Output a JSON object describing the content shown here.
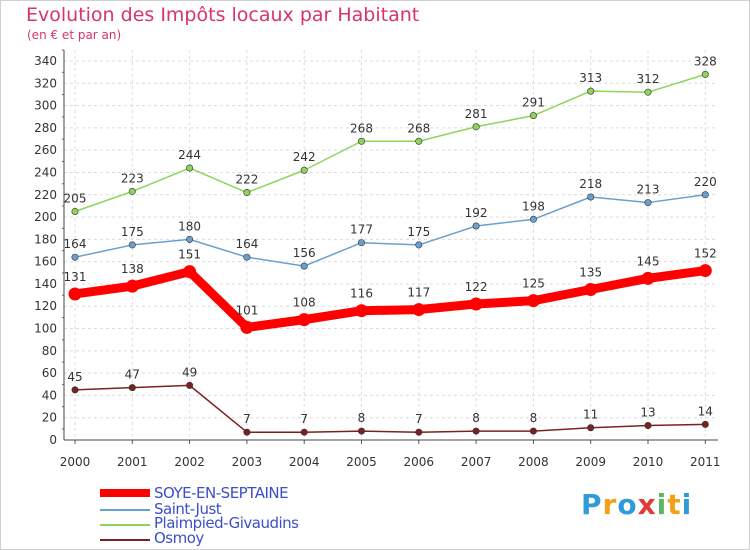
{
  "title": "Evolution des Impôts locaux par Habitant",
  "subtitle": "(en € et par an)",
  "brand": {
    "letters": [
      "P",
      "r",
      "o",
      "x",
      "i",
      "t",
      "i"
    ],
    "colors": [
      "#2f9bd9",
      "#f0a21c",
      "#2f9bd9",
      "#e23a3a",
      "#5cb85c",
      "#f0a21c",
      "#2f9bd9"
    ]
  },
  "chart_data": {
    "type": "line",
    "x": [
      "2000",
      "2001",
      "2002",
      "2003",
      "2004",
      "2005",
      "2006",
      "2007",
      "2008",
      "2009",
      "2010",
      "2011"
    ],
    "ylim": [
      0,
      340
    ],
    "yticks": [
      0,
      20,
      40,
      60,
      80,
      100,
      120,
      140,
      160,
      180,
      200,
      220,
      240,
      260,
      280,
      300,
      320,
      340
    ],
    "grid": true,
    "legend_position": "bottom-left",
    "series": [
      {
        "name": "SOYE-EN-SEPTAINE",
        "color": "#ff0000",
        "values": [
          131,
          138,
          151,
          101,
          108,
          116,
          117,
          122,
          125,
          135,
          145,
          152
        ]
      },
      {
        "name": "Saint-Just",
        "color": "#6aa0cf",
        "values": [
          164,
          175,
          180,
          164,
          156,
          177,
          175,
          192,
          198,
          218,
          213,
          220
        ]
      },
      {
        "name": "Plaimpied-Givaudins",
        "color": "#8fd45a",
        "values": [
          205,
          223,
          244,
          222,
          242,
          268,
          268,
          281,
          291,
          313,
          312,
          328
        ]
      },
      {
        "name": "Osmoy",
        "color": "#7a2222",
        "values": [
          45,
          47,
          49,
          7,
          7,
          8,
          7,
          8,
          8,
          11,
          13,
          14
        ]
      }
    ]
  }
}
